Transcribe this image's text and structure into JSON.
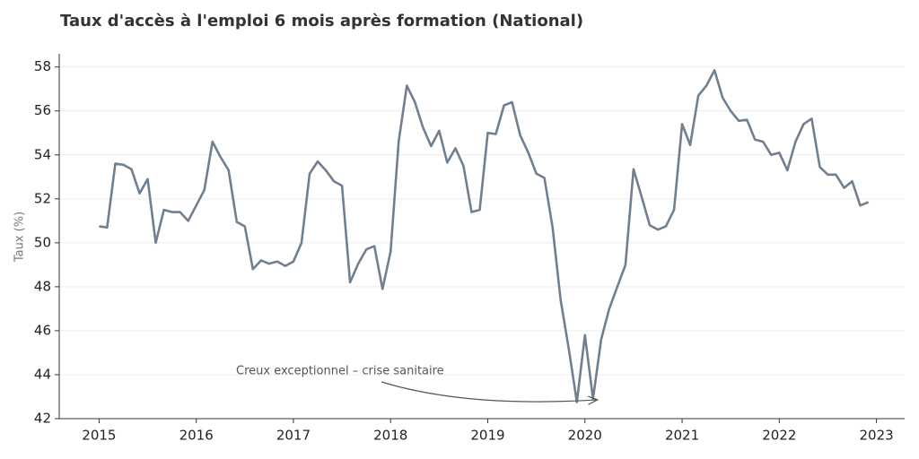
{
  "chart_data": {
    "type": "line",
    "title": "Taux d'accès à l'emploi 6 mois après formation (National)",
    "y_label": "Taux (%)",
    "annotation": "Creux exceptionnel – crise sanitaire",
    "x": [
      2015,
      2015.083,
      2015.167,
      2015.25,
      2015.333,
      2015.417,
      2015.5,
      2015.583,
      2015.667,
      2015.75,
      2015.833,
      2015.917,
      2016,
      2016.083,
      2016.167,
      2016.25,
      2016.333,
      2016.417,
      2016.5,
      2016.583,
      2016.667,
      2016.75,
      2016.833,
      2016.917,
      2017,
      2017.083,
      2017.167,
      2017.25,
      2017.333,
      2017.417,
      2017.5,
      2017.583,
      2017.667,
      2017.75,
      2017.833,
      2017.917,
      2018,
      2018.083,
      2018.167,
      2018.25,
      2018.333,
      2018.417,
      2018.5,
      2018.583,
      2018.667,
      2018.75,
      2018.833,
      2018.917,
      2019,
      2019.083,
      2019.167,
      2019.25,
      2019.333,
      2019.417,
      2019.5,
      2019.583,
      2019.667,
      2019.75,
      2019.833,
      2019.917,
      2020,
      2020.083,
      2020.167,
      2020.25,
      2020.333,
      2020.417,
      2020.5,
      2020.583,
      2020.667,
      2020.75,
      2020.833,
      2020.917,
      2021,
      2021.083,
      2021.167,
      2021.25,
      2021.333,
      2021.417,
      2021.5,
      2021.583,
      2021.667,
      2021.75,
      2021.833,
      2021.917,
      2022,
      2022.083,
      2022.167,
      2022.25,
      2022.333,
      2022.417,
      2022.5,
      2022.583,
      2022.667,
      2022.75,
      2022.833,
      2022.917
    ],
    "series": [
      {
        "color": "#708090",
        "values": [
          50.75,
          50.7,
          53.6,
          53.55,
          53.35,
          52.25,
          52.9,
          50.0,
          51.5,
          51.4,
          51.4,
          51.0,
          51.7,
          52.4,
          54.6,
          53.9,
          53.3,
          50.95,
          50.75,
          48.8,
          49.2,
          49.05,
          49.15,
          48.95,
          49.15,
          50.0,
          53.15,
          53.7,
          53.3,
          52.8,
          52.6,
          48.2,
          49.05,
          49.7,
          49.85,
          47.9,
          49.6,
          54.6,
          57.15,
          56.4,
          55.25,
          54.4,
          55.1,
          53.65,
          54.3,
          53.5,
          51.4,
          51.5,
          55.0,
          54.95,
          56.25,
          56.4,
          54.9,
          54.1,
          53.15,
          52.95,
          50.7,
          47.4,
          45.2,
          42.75,
          45.8,
          42.9,
          45.6,
          47.0,
          48.0,
          49.0,
          53.35,
          52.1,
          50.8,
          50.6,
          50.75,
          51.5,
          55.4,
          54.45,
          56.7,
          57.15,
          57.85,
          56.6,
          56.0,
          55.55,
          55.6,
          54.7,
          54.6,
          54.0,
          54.1,
          53.3,
          54.6,
          55.4,
          55.65,
          53.45,
          53.1,
          53.1,
          52.5,
          52.8,
          51.7,
          51.85
        ]
      }
    ],
    "xlim": [
      2014.59,
      2023.29
    ],
    "ylim": [
      42,
      58.6
    ],
    "xticks": [
      2015,
      2016,
      2017,
      2018,
      2019,
      2020,
      2021,
      2022,
      2023
    ],
    "yticks": [
      42,
      44,
      46,
      48,
      50,
      52,
      54,
      56,
      58
    ],
    "grid": true
  }
}
